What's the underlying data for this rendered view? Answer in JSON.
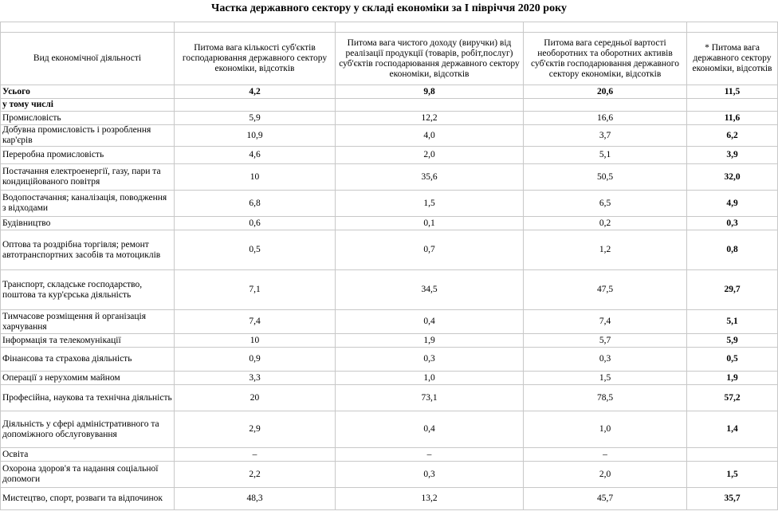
{
  "title": "Частка державного сектору у складі економіки за  I півріччя 2020 року",
  "headers": [
    "Вид економічної діяльності",
    "Питома вага кількості суб'єктів господарювання державного сектору економіки, відсотків",
    "Питома вага чистого доходу (виручки) від реалізації продукції (товарів, робіт,послуг) суб'єктів господарювання державного сектору економіки, відсотків",
    "Питома вага середньої вартості необоротних та оборотних активів суб'єктів господарювання державного сектору економіки, відсотків",
    "* Питома вага державного сектору економіки, відсотків"
  ],
  "total": {
    "label": "Усього",
    "c2": "4,2",
    "c3": "9,8",
    "c4": "20,6",
    "c5": "11,5"
  },
  "subheader": "у тому числі",
  "rows": [
    {
      "label": "Промисловість",
      "c2": "5,9",
      "c3": "12,2",
      "c4": "16,6",
      "c5": "11,6"
    },
    {
      "label": "Добувна промисловість  і розроблення кар'єрів",
      "c2": "10,9",
      "c3": "4,0",
      "c4": "3,7",
      "c5": "6,2"
    },
    {
      "label": "Переробна промисловість",
      "c2": "4,6",
      "c3": "2,0",
      "c4": "5,1",
      "c5": "3,9"
    },
    {
      "label": "Постачання електроенергії, газу, пари та кондиційованого повітря",
      "c2": "10",
      "c3": "35,6",
      "c4": "50,5",
      "c5": "32,0"
    },
    {
      "label": "Водопостачання; каналізація, поводження з відходами",
      "c2": "6,8",
      "c3": "1,5",
      "c4": "6,5",
      "c5": "4,9"
    },
    {
      "label": "Будівництво",
      "c2": "0,6",
      "c3": "0,1",
      "c4": "0,2",
      "c5": "0,3"
    },
    {
      "label": "Оптова та роздрібна торгівля; ремонт автотранспортних засобів та мотоциклів",
      "c2": "0,5",
      "c3": "0,7",
      "c4": "1,2",
      "c5": "0,8"
    },
    {
      "label": "Транспорт, складське господарство, поштова та кур'єрська діяльність",
      "c2": "7,1",
      "c3": "34,5",
      "c4": "47,5",
      "c5": "29,7"
    },
    {
      "label": "Тимчасове розміщення й організація харчування",
      "c2": "7,4",
      "c3": "0,4",
      "c4": "7,4",
      "c5": "5,1"
    },
    {
      "label": "Інформація та телекомунікації",
      "c2": "10",
      "c3": "1,9",
      "c4": "5,7",
      "c5": "5,9"
    },
    {
      "label": "Фінансова та страхова діяльність",
      "c2": "0,9",
      "c3": "0,3",
      "c4": "0,3",
      "c5": "0,5"
    },
    {
      "label": "Операції з нерухомим майном",
      "c2": "3,3",
      "c3": "1,0",
      "c4": "1,5",
      "c5": "1,9"
    },
    {
      "label": "Професійна, наукова та технічна діяльність",
      "c2": "20",
      "c3": "73,1",
      "c4": "78,5",
      "c5": "57,2"
    },
    {
      "label": "Діяльність у сфері адміністративного та допоміжного обслуговування",
      "c2": "2,9",
      "c3": "0,4",
      "c4": "1,0",
      "c5": "1,4"
    },
    {
      "label": "Освіта",
      "c2": "–",
      "c3": "–",
      "c4": "–",
      "c5": ""
    },
    {
      "label": "Охорона здоров'я та надання соціальної допомоги",
      "c2": "2,2",
      "c3": "0,3",
      "c4": "2,0",
      "c5": "1,5"
    },
    {
      "label": "Мистецтво, спорт, розваги та відпочинок",
      "c2": "48,3",
      "c3": "13,2",
      "c4": "45,7",
      "c5": "35,7"
    }
  ]
}
